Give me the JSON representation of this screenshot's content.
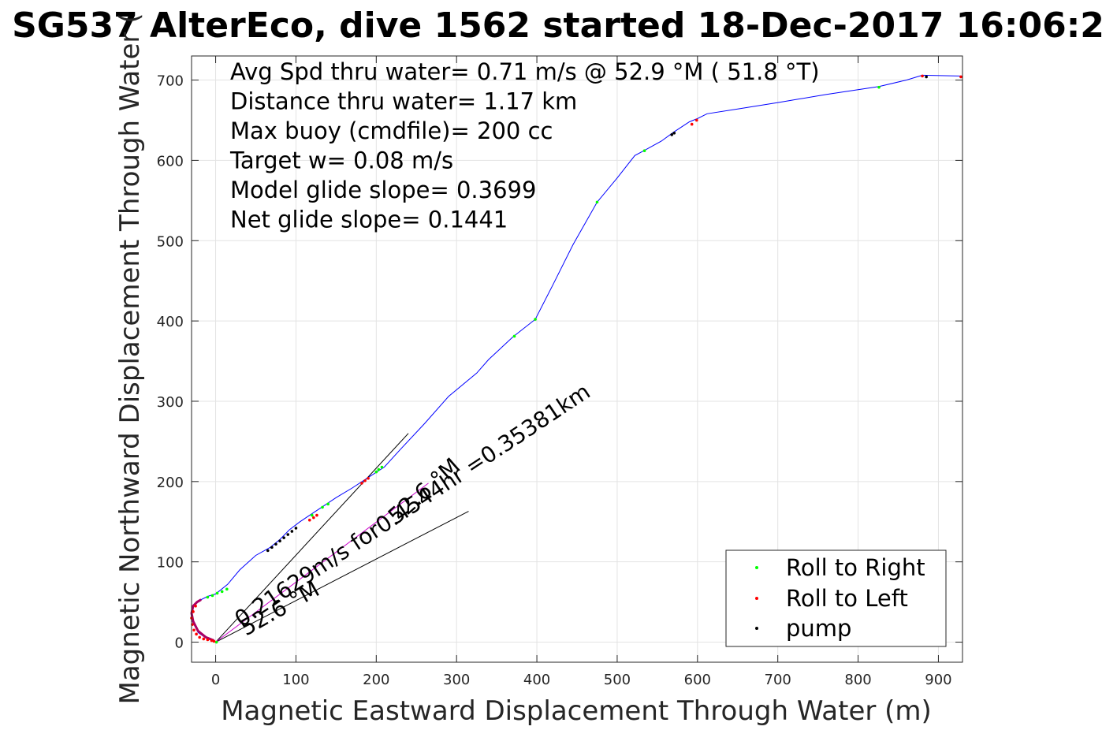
{
  "chart_data": {
    "type": "line",
    "title": "SG537 AlterEco, dive 1562 started 18-Dec-2017 16:06:2",
    "xlabel": "Magnetic Eastward Displacement Through Water (m)",
    "ylabel": "Magnetic Northward Displacement Through Water (",
    "xlim": [
      -30,
      930
    ],
    "ylim": [
      -25,
      730
    ],
    "xticks": [
      "0",
      "100",
      "200",
      "300",
      "400",
      "500",
      "600",
      "700",
      "800",
      "900"
    ],
    "xtick_values": [
      0,
      100,
      200,
      300,
      400,
      500,
      600,
      700,
      800,
      900
    ],
    "yticks": [
      "0",
      "100",
      "200",
      "300",
      "400",
      "500",
      "600",
      "700"
    ],
    "ytick_values": [
      0,
      100,
      200,
      300,
      400,
      500,
      600,
      700
    ],
    "grid": true,
    "info_lines": [
      "Avg Spd thru water=  0.71 m/s @  52.9 °M ( 51.8 °T)",
      "Distance thru water=  1.17 km",
      "Max buoy (cmdfile)= 200 cc",
      "Target w= 0.08 m/s",
      "Model glide slope= 0.3699",
      "Net glide slope= 0.1441"
    ],
    "track": {
      "color": "#0000ff",
      "x": [
        0,
        -12,
        -22,
        -28,
        -30,
        -28,
        -20,
        -10,
        0,
        15,
        30,
        50,
        68,
        80,
        92,
        105,
        120,
        135,
        150,
        170,
        190,
        210,
        230,
        260,
        290,
        325,
        340,
        370,
        398,
        420,
        445,
        475,
        500,
        522,
        535,
        555,
        570,
        590,
        600,
        612,
        650,
        700,
        760,
        826,
        860,
        880,
        930
      ],
      "y": [
        0,
        5,
        12,
        25,
        35,
        45,
        52,
        57,
        60,
        72,
        90,
        108,
        118,
        128,
        140,
        150,
        160,
        170,
        180,
        192,
        205,
        218,
        240,
        272,
        306,
        335,
        352,
        380,
        402,
        445,
        495,
        548,
        578,
        606,
        613,
        624,
        635,
        648,
        652,
        658,
        664,
        672,
        682,
        692,
        700,
        706,
        705
      ]
    },
    "series": [
      {
        "name": "Roll to Right",
        "color": "#00ff00",
        "x": [
          -10,
          -4,
          2,
          8,
          14,
          120,
          133,
          140,
          200,
          203,
          207,
          372,
          398,
          475,
          534,
          826,
          1
        ],
        "y": [
          56,
          58,
          61,
          63,
          66,
          158,
          168,
          172,
          212,
          215,
          218,
          381,
          402,
          548,
          612,
          691,
          0
        ]
      },
      {
        "name": "Roll to Left",
        "color": "#ff0000",
        "x": [
          -25,
          -28,
          -30,
          -29,
          -27,
          -24,
          -20,
          -15,
          -10,
          -5,
          -2,
          117,
          122,
          126,
          182,
          186,
          190,
          593,
          599,
          880,
          928
        ],
        "y": [
          45,
          38,
          30,
          22,
          15,
          10,
          6,
          4,
          3,
          2,
          1,
          152,
          155,
          158,
          198,
          201,
          204,
          645,
          650,
          705,
          704
        ]
      },
      {
        "name": "pump",
        "color": "#000000",
        "x": [
          65,
          70,
          75,
          80,
          85,
          90,
          95,
          100,
          568,
          571,
          885
        ],
        "y": [
          114,
          118,
          122,
          126,
          130,
          134,
          138,
          142,
          632,
          634,
          704
        ]
      }
    ],
    "magenta_track": {
      "color": "#aa0066",
      "x": [
        -2,
        -12,
        -22,
        -28,
        -30,
        -28,
        -23,
        -18
      ],
      "y": [
        2,
        6,
        14,
        26,
        36,
        45,
        50,
        53
      ]
    },
    "lines": [
      {
        "label": "0.21629m/s for0.4544hr =0.35381km",
        "heading_label": "52.6 °M",
        "color": "#000000",
        "x": [
          0,
          240
        ],
        "y": [
          0,
          260
        ]
      },
      {
        "label": "",
        "heading_label": "52.6 °M",
        "color": "#000000",
        "x": [
          0,
          315
        ],
        "y": [
          0,
          163
        ]
      },
      {
        "label": "",
        "heading_label": "",
        "color": "#cc00cc",
        "x": [
          0,
          265
        ],
        "y": [
          0,
          198
        ]
      }
    ],
    "legend": {
      "placement": "bottom-right",
      "entries": [
        "Roll to Right",
        "Roll to Left",
        "pump"
      ]
    }
  }
}
